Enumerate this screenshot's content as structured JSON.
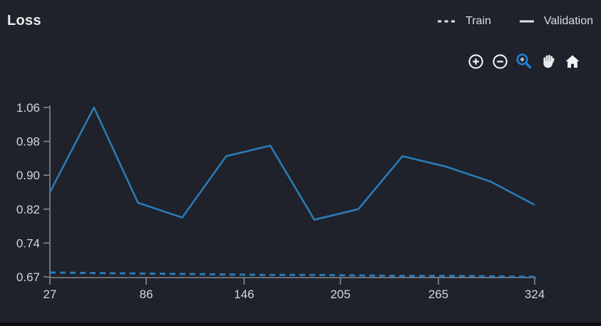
{
  "header": {
    "title": "Loss"
  },
  "legend": {
    "marker_color": "#e2e3e6",
    "items": [
      {
        "label": "Train",
        "style": "dashed"
      },
      {
        "label": "Validation",
        "style": "solid"
      }
    ]
  },
  "toolbar": {
    "icon_color": "#eef0f3",
    "active_color": "#1f7fd1",
    "icons": [
      "zoom-in",
      "zoom-out",
      "zoom-select",
      "pan",
      "home"
    ],
    "active_icon": "zoom-select"
  },
  "chart_data": {
    "type": "line",
    "title": "Loss",
    "x": [
      27,
      54,
      81,
      108,
      135,
      162,
      189,
      216,
      243,
      270,
      297,
      324
    ],
    "series": [
      {
        "name": "Train",
        "style": "dashed",
        "values": [
          0.679,
          0.678,
          0.677,
          0.676,
          0.675,
          0.674,
          0.674,
          0.673,
          0.672,
          0.672,
          0.671,
          0.67
        ]
      },
      {
        "name": "Validation",
        "style": "solid",
        "values": [
          0.86,
          1.06,
          0.835,
          0.8,
          0.945,
          0.97,
          0.795,
          0.82,
          0.945,
          0.92,
          0.885,
          0.83
        ]
      }
    ],
    "x_ticks": [
      27,
      86,
      146,
      205,
      265,
      324
    ],
    "y_ticks": [
      1.06,
      0.98,
      0.9,
      0.82,
      0.74,
      0.67
    ],
    "xlabel": "",
    "ylabel": "",
    "xlim": [
      27,
      324
    ],
    "grid": false,
    "legend_position": "top-right",
    "line_color": "#2a7ab8",
    "axis_color": "#85878e",
    "tick_label_color": "#d5d6d9"
  }
}
